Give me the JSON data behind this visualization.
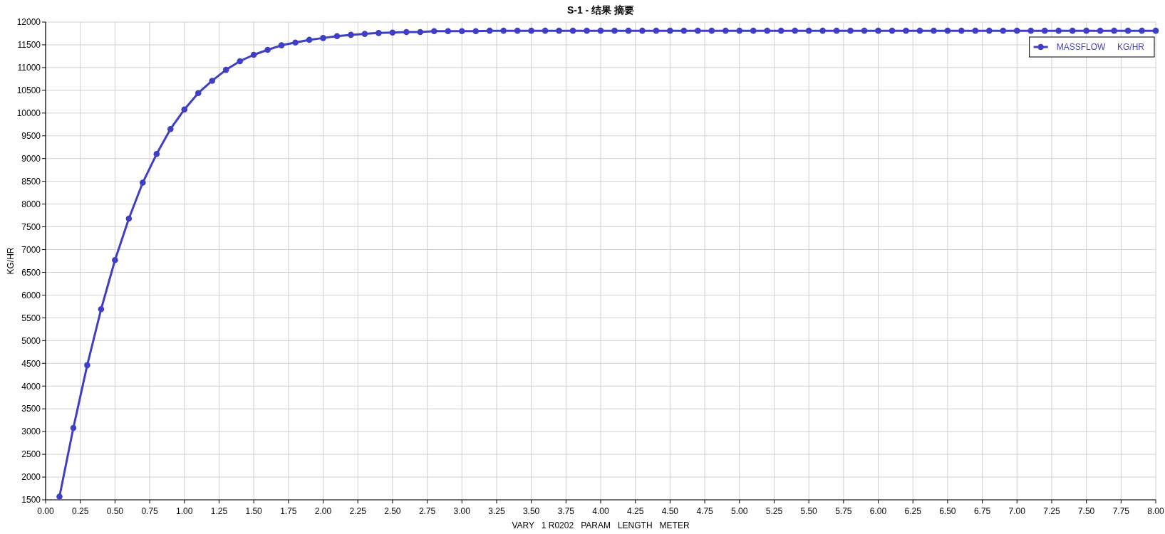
{
  "chart_data": {
    "type": "line",
    "title": "S-1 - 结果 摘要",
    "xlabel": "VARY   1 R0202   PARAM   LENGTH   METER",
    "ylabel": "KG/HR",
    "x": [
      0.1,
      0.2,
      0.3,
      0.4,
      0.5,
      0.6,
      0.7,
      0.8,
      0.9,
      1.0,
      1.1,
      1.2,
      1.3,
      1.4,
      1.5,
      1.6,
      1.7,
      1.8,
      1.9,
      2.0,
      2.1,
      2.2,
      2.3,
      2.4,
      2.5,
      2.6,
      2.7,
      2.8,
      2.9,
      3.0,
      3.1,
      3.2,
      3.3,
      3.4,
      3.5,
      3.6,
      3.7,
      3.8,
      3.9,
      4.0,
      4.1,
      4.2,
      4.3,
      4.4,
      4.5,
      4.6,
      4.7,
      4.8,
      4.9,
      5.0,
      5.1,
      5.2,
      5.3,
      5.4,
      5.5,
      5.6,
      5.7,
      5.8,
      5.9,
      6.0,
      6.1,
      6.2,
      6.3,
      6.4,
      6.5,
      6.6,
      6.7,
      6.8,
      6.9,
      7.0,
      7.1,
      7.2,
      7.3,
      7.4,
      7.5,
      7.6,
      7.7,
      7.8,
      7.9,
      8.0
    ],
    "series": [
      {
        "name": "MASSFLOW     KG/HR",
        "color": "#3f3fc6",
        "values": [
          1570,
          3080,
          4460,
          5690,
          6770,
          7680,
          8470,
          9100,
          9650,
          10080,
          10440,
          10710,
          10950,
          11140,
          11280,
          11390,
          11490,
          11550,
          11610,
          11650,
          11690,
          11720,
          11740,
          11760,
          11770,
          11780,
          11780,
          11800,
          11800,
          11800,
          11800,
          11810,
          11810,
          11810,
          11810,
          11810,
          11810,
          11810,
          11810,
          11810,
          11810,
          11810,
          11810,
          11810,
          11810,
          11810,
          11810,
          11810,
          11810,
          11810,
          11810,
          11810,
          11810,
          11810,
          11810,
          11810,
          11810,
          11810,
          11810,
          11810,
          11810,
          11810,
          11810,
          11810,
          11810,
          11810,
          11810,
          11810,
          11810,
          11810,
          11810,
          11810,
          11810,
          11810,
          11810,
          11810,
          11810,
          11810,
          11810,
          11810
        ]
      }
    ],
    "xlim": [
      0,
      8
    ],
    "ylim": [
      1500,
      12000
    ],
    "xticks": [
      {
        "value": 0,
        "label": "0.00"
      },
      {
        "value": 0.25,
        "label": "0.25"
      },
      {
        "value": 0.5,
        "label": "0.50"
      },
      {
        "value": 0.75,
        "label": "0.75"
      },
      {
        "value": 1,
        "label": "1.00"
      },
      {
        "value": 1.25,
        "label": "1.25"
      },
      {
        "value": 1.5,
        "label": "1.50"
      },
      {
        "value": 1.75,
        "label": "1.75"
      },
      {
        "value": 2,
        "label": "2.00"
      },
      {
        "value": 2.25,
        "label": "2.25"
      },
      {
        "value": 2.5,
        "label": "2.50"
      },
      {
        "value": 2.75,
        "label": "2.75"
      },
      {
        "value": 3,
        "label": "3.00"
      },
      {
        "value": 3.25,
        "label": "3.25"
      },
      {
        "value": 3.5,
        "label": "3.50"
      },
      {
        "value": 3.75,
        "label": "3.75"
      },
      {
        "value": 4,
        "label": "4.00"
      },
      {
        "value": 4.25,
        "label": "4.25"
      },
      {
        "value": 4.5,
        "label": "4.50"
      },
      {
        "value": 4.75,
        "label": "4.75"
      },
      {
        "value": 5,
        "label": "5.00"
      },
      {
        "value": 5.25,
        "label": "5.25"
      },
      {
        "value": 5.5,
        "label": "5.50"
      },
      {
        "value": 5.75,
        "label": "5.75"
      },
      {
        "value": 6,
        "label": "6.00"
      },
      {
        "value": 6.25,
        "label": "6.25"
      },
      {
        "value": 6.5,
        "label": "6.50"
      },
      {
        "value": 6.75,
        "label": "6.75"
      },
      {
        "value": 7,
        "label": "7.00"
      },
      {
        "value": 7.25,
        "label": "7.25"
      },
      {
        "value": 7.5,
        "label": "7.50"
      },
      {
        "value": 7.75,
        "label": "7.75"
      },
      {
        "value": 8,
        "label": "8.00"
      }
    ],
    "yticks": [
      1500,
      2000,
      2500,
      3000,
      3500,
      4000,
      4500,
      5000,
      5500,
      6000,
      6500,
      7000,
      7500,
      8000,
      8500,
      9000,
      9500,
      10000,
      10500,
      11000,
      11500,
      12000
    ],
    "grid": true,
    "legend": "top right",
    "marker": "circle",
    "line_style": "solid"
  }
}
